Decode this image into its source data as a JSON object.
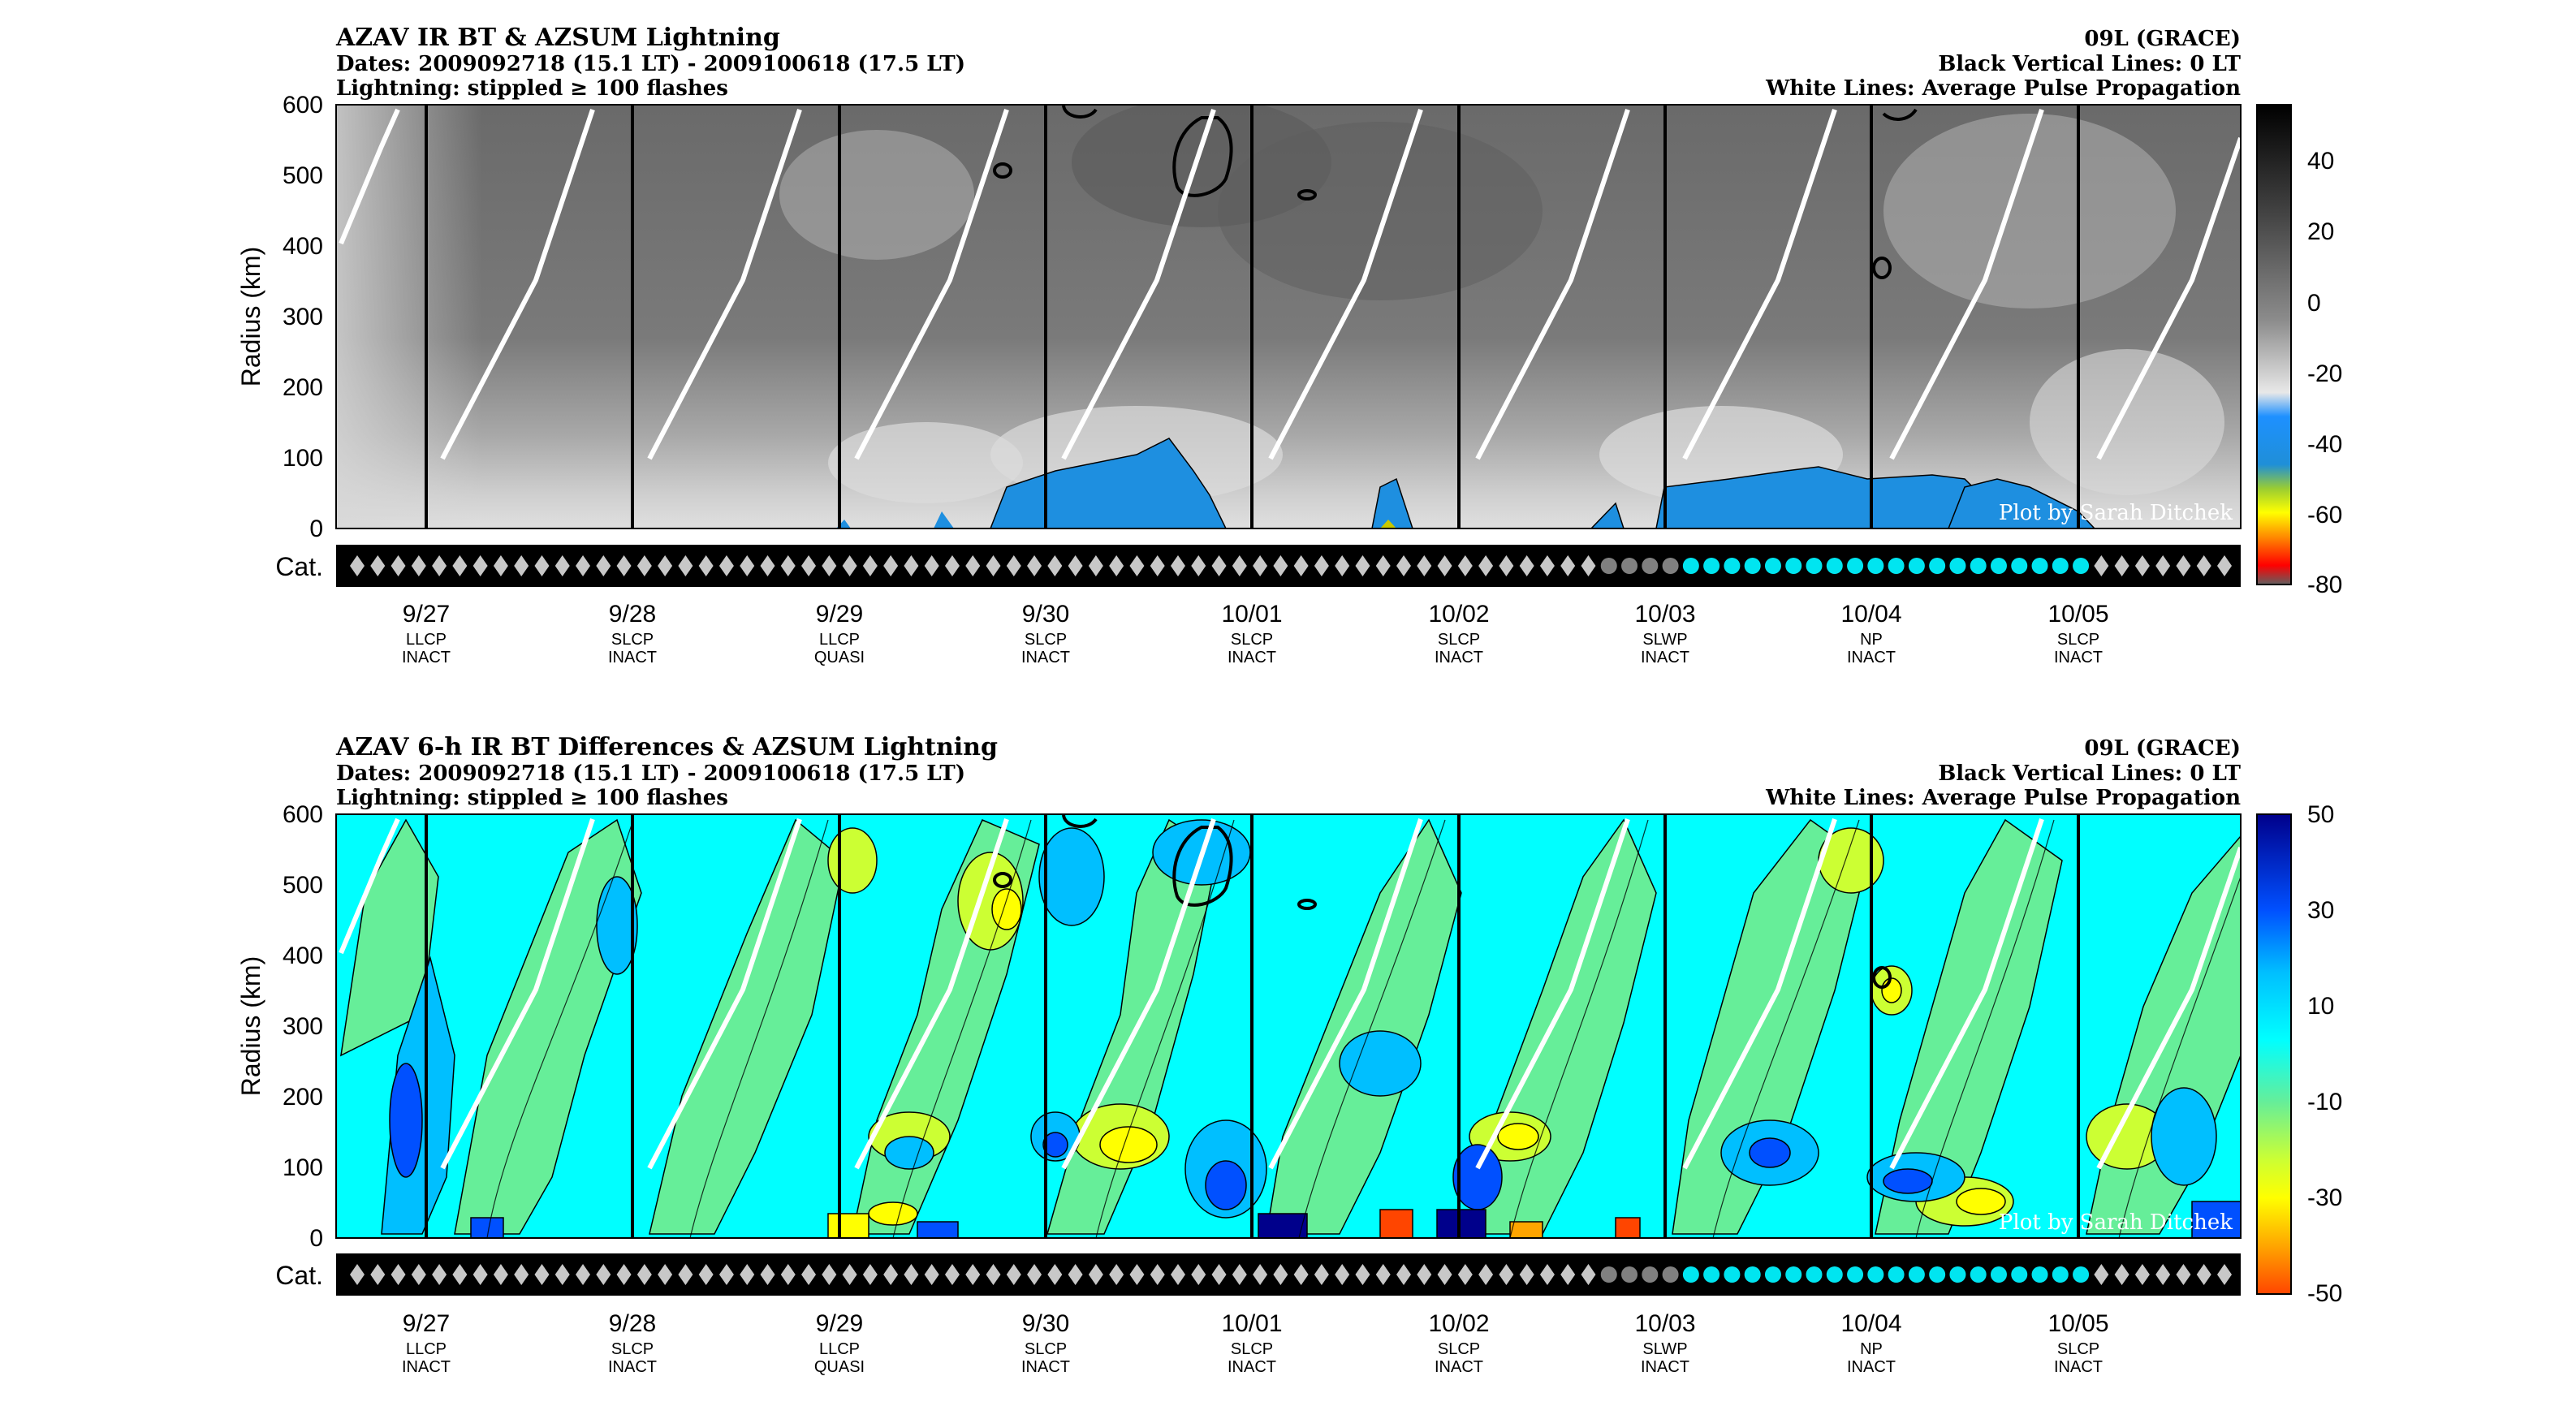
{
  "colors": {
    "contour": "#000000",
    "pulse_line": "#ffffff",
    "cat_bar": "#000000",
    "cat_diamond": "#c8c8c8",
    "cat_dot_grey": "#808080",
    "cat_dot_cyan": "#00e5f0"
  },
  "chart_data": [
    {
      "type": "heatmap",
      "title": "AZAV IR BT & AZSUM Lightning",
      "subtitle_lines": [
        "Dates: 2009092718 (15.1 LT) - 2009100618 (17.5 LT)",
        "Lightning: stippled ≥ 100 flashes"
      ],
      "right_lines": [
        "09L (GRACE)",
        "Black Vertical Lines: 0 LT",
        "White Lines: Average Pulse Propagation"
      ],
      "ylabel": "Radius (km)",
      "ylim": [
        0,
        600
      ],
      "yticks": [
        "0",
        "100",
        "200",
        "300",
        "400",
        "500",
        "600"
      ],
      "x_ticks": [
        {
          "date": "9/27",
          "shear": "LLCP",
          "state": "INACT"
        },
        {
          "date": "9/28",
          "shear": "SLCP",
          "state": "INACT"
        },
        {
          "date": "9/29",
          "shear": "LLCP",
          "state": "QUASI"
        },
        {
          "date": "9/30",
          "shear": "SLCP",
          "state": "INACT"
        },
        {
          "date": "10/01",
          "shear": "SLCP",
          "state": "INACT"
        },
        {
          "date": "10/02",
          "shear": "SLCP",
          "state": "INACT"
        },
        {
          "date": "10/03",
          "shear": "SLWP",
          "state": "INACT"
        },
        {
          "date": "10/04",
          "shear": "NP",
          "state": "INACT"
        },
        {
          "date": "10/05",
          "shear": "SLCP",
          "state": "INACT"
        }
      ],
      "colorbar": {
        "ticks": [
          "40",
          "20",
          "0",
          "-20",
          "-40",
          "-60",
          "-80"
        ],
        "range": [
          -80,
          55
        ]
      },
      "cat_label": "Cat.",
      "credit": "Plot by Sarah Ditchek"
    },
    {
      "type": "heatmap",
      "title": "AZAV 6-h IR BT Differences & AZSUM Lightning",
      "subtitle_lines": [
        "Dates: 2009092718 (15.1 LT) - 2009100618 (17.5 LT)",
        "Lightning: stippled ≥ 100 flashes"
      ],
      "right_lines": [
        "09L (GRACE)",
        "Black Vertical Lines: 0 LT",
        "White Lines: Average Pulse Propagation"
      ],
      "ylabel": "Radius (km)",
      "ylim": [
        0,
        600
      ],
      "yticks": [
        "0",
        "100",
        "200",
        "300",
        "400",
        "500",
        "600"
      ],
      "x_ticks": [
        {
          "date": "9/27",
          "shear": "LLCP",
          "state": "INACT"
        },
        {
          "date": "9/28",
          "shear": "SLCP",
          "state": "INACT"
        },
        {
          "date": "9/29",
          "shear": "LLCP",
          "state": "QUASI"
        },
        {
          "date": "9/30",
          "shear": "SLCP",
          "state": "INACT"
        },
        {
          "date": "10/01",
          "shear": "SLCP",
          "state": "INACT"
        },
        {
          "date": "10/02",
          "shear": "SLCP",
          "state": "INACT"
        },
        {
          "date": "10/03",
          "shear": "SLWP",
          "state": "INACT"
        },
        {
          "date": "10/04",
          "shear": "NP",
          "state": "INACT"
        },
        {
          "date": "10/05",
          "shear": "SLCP",
          "state": "INACT"
        }
      ],
      "colorbar": {
        "ticks": [
          "50",
          "30",
          "10",
          "-10",
          "-30",
          "-50"
        ],
        "range": [
          -50,
          50
        ]
      },
      "cat_label": "Cat.",
      "credit": "Plot by Sarah Ditchek"
    }
  ]
}
